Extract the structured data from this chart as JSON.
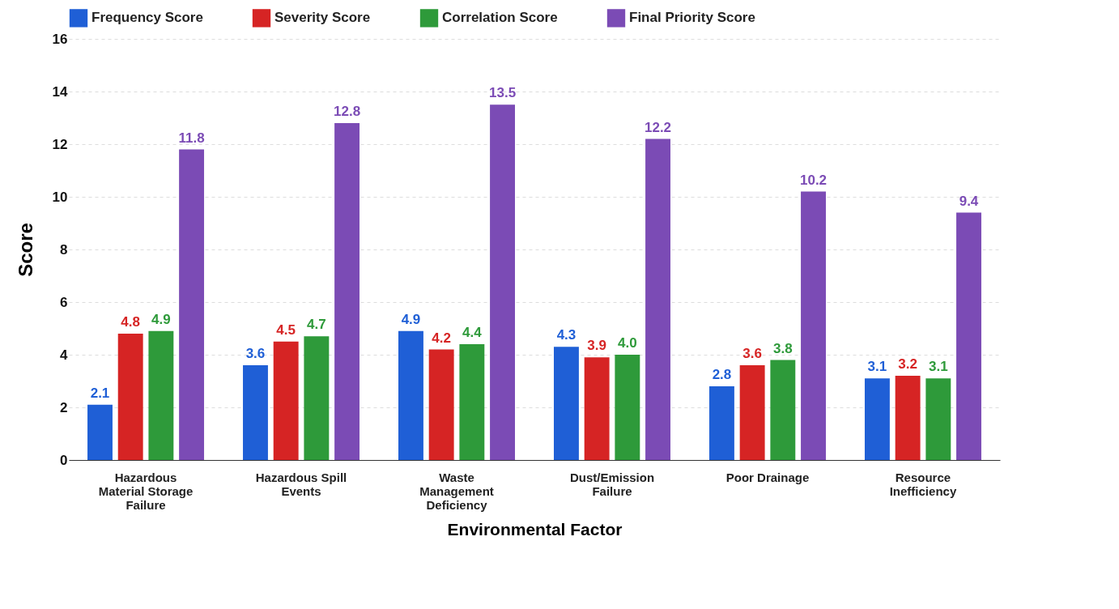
{
  "chart_data": {
    "type": "bar",
    "xlabel": "Environmental Factor",
    "ylabel": "Score",
    "categories": [
      "Hazardous Material Storage Failure",
      "Hazardous Spill Events",
      "Waste Management Deficiency",
      "Dust/Emission Failure",
      "Poor Drainage",
      "Resource Inefficiency"
    ],
    "series": [
      {
        "name": "Frequency Score",
        "color": "#1f5fd6",
        "values": [
          2.1,
          3.6,
          4.9,
          4.3,
          2.8,
          3.1
        ],
        "value_labels": [
          "2.1",
          "3.6",
          "4.9",
          "4.3",
          "2.8",
          "3.1"
        ]
      },
      {
        "name": "Severity Score",
        "color": "#d62424",
        "values": [
          4.8,
          4.5,
          4.2,
          3.9,
          3.6,
          3.2
        ],
        "value_labels": [
          "4.8",
          "4.5",
          "4.2",
          "3.9",
          "3.6",
          "3.2"
        ]
      },
      {
        "name": "Correlation Score",
        "color": "#2e9a3a",
        "values": [
          4.9,
          4.7,
          4.4,
          4.0,
          3.8,
          3.1
        ],
        "value_labels": [
          "4.9",
          "4.7",
          "4.4",
          "4.0",
          "3.8",
          "3.1"
        ]
      },
      {
        "name": "Final Priority Score",
        "color": "#7b4bb5",
        "values": [
          11.8,
          12.8,
          13.5,
          12.2,
          10.2,
          9.4
        ],
        "value_labels": [
          "11.8",
          "12.8",
          "13.5",
          "12.2",
          "10.2",
          "9.4"
        ]
      }
    ],
    "ylim": [
      0,
      16
    ],
    "yticks": [
      0,
      2,
      4,
      6,
      8,
      10,
      12,
      14,
      16
    ],
    "grid": "y",
    "legend": "top"
  }
}
